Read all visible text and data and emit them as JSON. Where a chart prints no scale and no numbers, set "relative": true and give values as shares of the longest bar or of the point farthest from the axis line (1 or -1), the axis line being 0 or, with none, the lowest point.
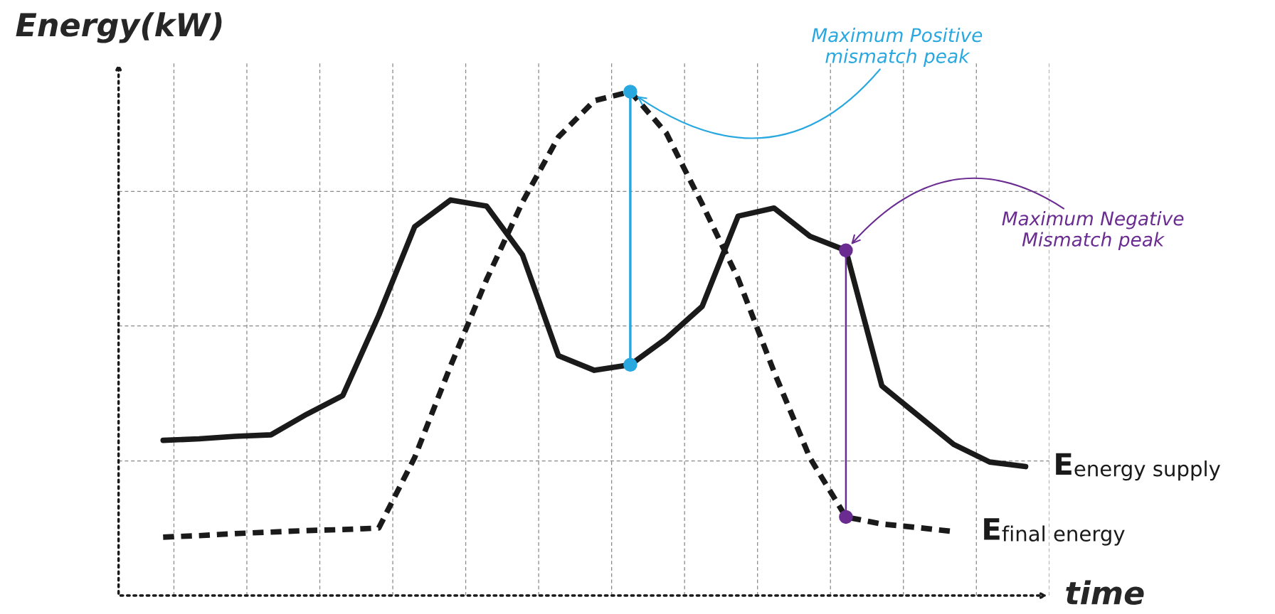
{
  "chart_data": {
    "type": "line",
    "title": "Energy(kW)",
    "xlabel": "time",
    "relative": true,
    "grid": true,
    "legend": false,
    "tick_labels": false,
    "categories": [
      null,
      null,
      null,
      null,
      null,
      null,
      null,
      null,
      null,
      null,
      null,
      null,
      null,
      null,
      null,
      null,
      null,
      null,
      null,
      null,
      null,
      null,
      null,
      null,
      null
    ],
    "series": [
      {
        "name": "E$_{energy supply}$",
        "color": "#1a1a1a",
        "line_style": "solid",
        "values": [
          0.308,
          0.311,
          0.316,
          0.319,
          0.36,
          0.397,
          0.556,
          0.732,
          0.785,
          0.773,
          0.676,
          0.476,
          0.447,
          0.458,
          0.51,
          0.574,
          0.753,
          0.769,
          0.713,
          0.685,
          0.416,
          0.358,
          0.3,
          0.265,
          0.256
        ]
      },
      {
        "name": "E$_{final energy}$",
        "color": "#1a1a1a",
        "line_style": "dashed",
        "values": [
          0.116,
          0.119,
          0.123,
          0.126,
          0.129,
          0.131,
          0.134,
          0.274,
          0.456,
          0.627,
          0.781,
          0.91,
          0.982,
          1.0,
          0.918,
          0.777,
          0.629,
          0.444,
          0.273,
          0.156,
          0.142,
          0.135,
          0.127,
          null,
          null
        ]
      }
    ],
    "annotations": [
      "Maximum Positive\nmismatch peak",
      "Maximum Negative\nMismatch peak"
    ]
  }
}
